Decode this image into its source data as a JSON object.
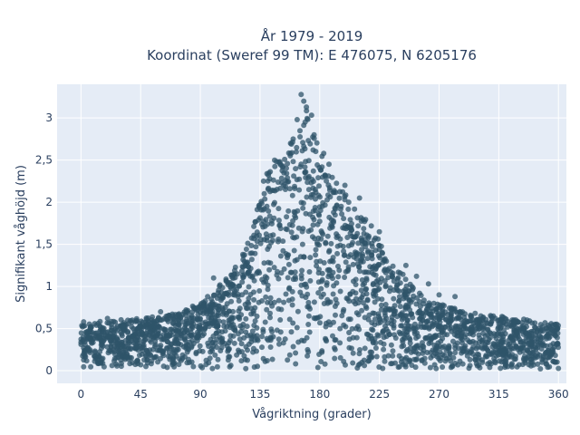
{
  "chart_data": {
    "type": "scatter",
    "title_line1": "År 1979 - 2019",
    "title_line2": "Koordinat (Sweref 99 TM): E 476075, N 6205176",
    "xlabel": "Vågriktning (grader)",
    "ylabel": "Signifikant våghöjd (m)",
    "xlim": [
      -18,
      366
    ],
    "ylim": [
      -0.15,
      3.4
    ],
    "x_ticks": [
      0,
      45,
      90,
      135,
      180,
      225,
      270,
      315,
      360
    ],
    "x_tick_labels": [
      "0",
      "45",
      "90",
      "135",
      "180",
      "225",
      "270",
      "315",
      "360"
    ],
    "y_ticks": [
      0,
      0.5,
      1,
      1.5,
      2,
      2.5,
      3
    ],
    "y_tick_labels": [
      "0",
      "0,5",
      "1",
      "1,5",
      "2",
      "2,5",
      "3"
    ],
    "grid": true,
    "plot_background": "#e5ecf6",
    "marker_color": "#2f5469",
    "envelope": [
      [
        0,
        0.55
      ],
      [
        20,
        0.6
      ],
      [
        45,
        0.62
      ],
      [
        70,
        0.68
      ],
      [
        90,
        0.8
      ],
      [
        100,
        0.95
      ],
      [
        110,
        1.1
      ],
      [
        120,
        1.3
      ],
      [
        130,
        1.7
      ],
      [
        138,
        2.3
      ],
      [
        145,
        2.5
      ],
      [
        155,
        2.6
      ],
      [
        165,
        2.9
      ],
      [
        172,
        3.2
      ],
      [
        180,
        2.6
      ],
      [
        190,
        2.3
      ],
      [
        200,
        2.1
      ],
      [
        210,
        1.9
      ],
      [
        220,
        1.7
      ],
      [
        230,
        1.4
      ],
      [
        240,
        1.2
      ],
      [
        250,
        1.0
      ],
      [
        260,
        0.85
      ],
      [
        270,
        0.8
      ],
      [
        290,
        0.7
      ],
      [
        315,
        0.65
      ],
      [
        340,
        0.6
      ],
      [
        360,
        0.55
      ]
    ],
    "outliers": [
      [
        166,
        3.28
      ],
      [
        168,
        3.2
      ],
      [
        170,
        3.13
      ],
      [
        163,
        2.98
      ],
      [
        169,
        2.95
      ],
      [
        160,
        2.75
      ],
      [
        158,
        2.7
      ],
      [
        175,
        2.62
      ],
      [
        183,
        2.58
      ],
      [
        187,
        2.45
      ],
      [
        146,
        2.5
      ],
      [
        150,
        2.48
      ],
      [
        199,
        2.2
      ],
      [
        210,
        2.05
      ],
      [
        225,
        1.65
      ],
      [
        245,
        1.25
      ],
      [
        253,
        1.12
      ],
      [
        262,
        1.03
      ],
      [
        270,
        0.9
      ],
      [
        282,
        0.88
      ],
      [
        2,
        0.58
      ],
      [
        20,
        0.62
      ],
      [
        60,
        0.7
      ],
      [
        100,
        1.1
      ],
      [
        118,
        1.15
      ]
    ]
  }
}
